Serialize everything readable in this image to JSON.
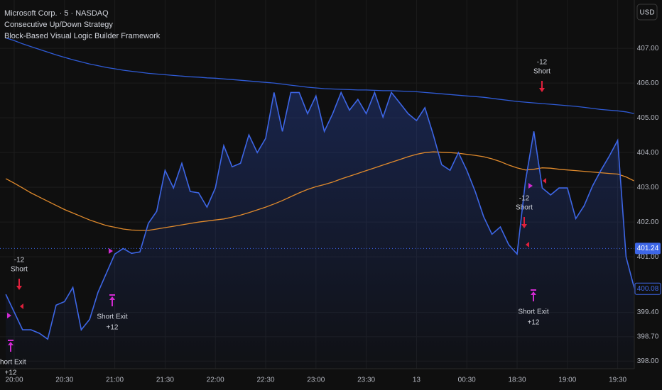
{
  "chart_data": {
    "type": "line",
    "title": "Microsoft Corp. · 5 · NASDAQ",
    "subtitles": [
      "Consecutive Up/Down Strategy",
      "Block-Based Visual Logic Builder Framework"
    ],
    "currency": "USD",
    "color": "#3d66e6",
    "grid": true,
    "categories": [
      null,
      "20:00",
      null,
      null,
      null,
      null,
      null,
      "20:30",
      null,
      null,
      null,
      null,
      null,
      "21:00",
      null,
      null,
      null,
      null,
      null,
      "21:30",
      null,
      null,
      null,
      null,
      null,
      "22:00",
      null,
      null,
      null,
      null,
      null,
      "22:30",
      null,
      null,
      null,
      null,
      null,
      "23:00",
      null,
      null,
      null,
      null,
      null,
      "23:30",
      null,
      null,
      null,
      null,
      null,
      "13",
      null,
      null,
      null,
      null,
      null,
      "00:30",
      null,
      null,
      null,
      null,
      null,
      "18:30",
      null,
      null,
      null,
      null,
      null,
      "19:00",
      null,
      null,
      null,
      null,
      null,
      "19:30",
      null,
      null
    ],
    "values": [
      399.92,
      399.41,
      398.9,
      398.9,
      398.8,
      398.63,
      399.61,
      399.71,
      400.12,
      398.9,
      399.2,
      399.98,
      400.53,
      401.08,
      401.24,
      401.1,
      401.14,
      401.96,
      402.31,
      403.49,
      402.98,
      403.69,
      402.88,
      402.84,
      402.43,
      402.98,
      404.2,
      403.59,
      403.69,
      404.51,
      404.0,
      404.41,
      405.73,
      404.61,
      405.73,
      405.73,
      405.12,
      405.63,
      404.61,
      405.12,
      405.73,
      405.22,
      405.53,
      405.12,
      405.73,
      405.02,
      405.73,
      405.43,
      405.12,
      404.92,
      405.29,
      404.51,
      403.65,
      403.49,
      404.0,
      403.49,
      402.88,
      402.16,
      401.65,
      401.86,
      401.35,
      401.08,
      403.18,
      404.61,
      402.98,
      402.78,
      402.98,
      402.98,
      402.1,
      402.47,
      403.04,
      403.49,
      403.9,
      404.35,
      401.0,
      400.08
    ],
    "moving_averages": [
      {
        "color": "#2f5bd6",
        "values": [
          407.3,
          407.22,
          407.13,
          407.05,
          406.97,
          406.89,
          406.81,
          406.74,
          406.67,
          406.61,
          406.55,
          406.5,
          406.45,
          406.41,
          406.37,
          406.34,
          406.31,
          406.28,
          406.26,
          406.24,
          406.22,
          406.2,
          406.18,
          406.17,
          406.15,
          406.14,
          406.12,
          406.1,
          406.08,
          406.06,
          406.04,
          406.02,
          406.0,
          405.97,
          405.94,
          405.91,
          405.88,
          405.86,
          405.84,
          405.83,
          405.82,
          405.81,
          405.8,
          405.8,
          405.79,
          405.78,
          405.78,
          405.77,
          405.76,
          405.75,
          405.73,
          405.71,
          405.69,
          405.67,
          405.65,
          405.63,
          405.61,
          405.59,
          405.56,
          405.53,
          405.5,
          405.47,
          405.45,
          405.43,
          405.41,
          405.39,
          405.37,
          405.35,
          405.33,
          405.3,
          405.27,
          405.24,
          405.22,
          405.2,
          405.17,
          405.12
        ]
      },
      {
        "color": "#e08a2c",
        "values": [
          403.25,
          403.12,
          402.98,
          402.84,
          402.72,
          402.6,
          402.48,
          402.36,
          402.26,
          402.16,
          402.06,
          401.98,
          401.9,
          401.85,
          401.8,
          401.77,
          401.76,
          401.76,
          401.8,
          401.84,
          401.88,
          401.92,
          401.96,
          402.0,
          402.03,
          402.06,
          402.09,
          402.14,
          402.2,
          402.27,
          402.35,
          402.43,
          402.52,
          402.62,
          402.73,
          402.84,
          402.94,
          403.02,
          403.08,
          403.15,
          403.24,
          403.32,
          403.4,
          403.48,
          403.56,
          403.64,
          403.72,
          403.8,
          403.88,
          403.95,
          404.0,
          404.02,
          404.01,
          404.0,
          403.98,
          403.95,
          403.92,
          403.88,
          403.82,
          403.74,
          403.64,
          403.56,
          403.5,
          403.52,
          403.56,
          403.55,
          403.52,
          403.5,
          403.48,
          403.46,
          403.44,
          403.42,
          403.4,
          403.38,
          403.3,
          403.18
        ]
      }
    ],
    "ylim": [
      397.78,
      408.39
    ],
    "yticks": [
      {
        "value": 398,
        "label": "398.00"
      },
      {
        "value": 398.7,
        "label": "398.70"
      },
      {
        "value": 399.4,
        "label": "399.40"
      },
      {
        "value": 401,
        "label": "401.00"
      },
      {
        "value": 402,
        "label": "402.00"
      },
      {
        "value": 403,
        "label": "403.00"
      },
      {
        "value": 404,
        "label": "404.00"
      },
      {
        "value": 405,
        "label": "405.00"
      },
      {
        "value": 406,
        "label": "406.00"
      },
      {
        "value": 407,
        "label": "407.00"
      }
    ],
    "price_labels": [
      401.24,
      400.08
    ],
    "entries": [
      {
        "qty": "-12",
        "action": "Short"
      },
      {
        "qty": "-12",
        "action": "Short"
      },
      {
        "qty": "-12",
        "action": "Short"
      }
    ],
    "exits": [
      {
        "action": "Short Exit",
        "qty": "+12"
      },
      {
        "action": "Short Exit",
        "qty": "+12"
      },
      {
        "action": "Short Exit",
        "qty": "+12"
      }
    ]
  }
}
